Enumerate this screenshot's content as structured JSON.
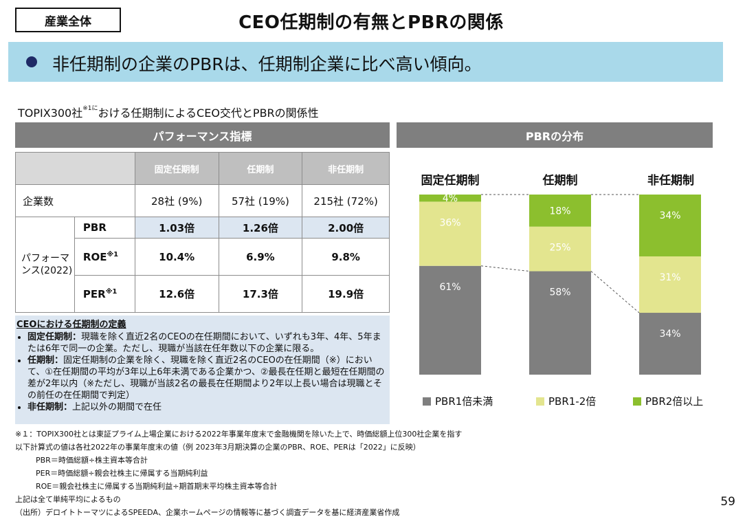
{
  "header": {
    "tag": "産業全体",
    "title": "CEO任期制の有無とPBRの関係",
    "banner": "非任期制の企業のPBRは、任期制企業に比べ高い傾向。"
  },
  "subtitle": {
    "before": "TOPIX300社",
    "sup": "※1に",
    "after": "おける任期制によるCEO交代とPBRの関係性"
  },
  "left_section": {
    "heading": "パフォーマンス指標",
    "columns": [
      "固定任期制",
      "任期制",
      "非任期制"
    ],
    "count_row": {
      "label": "企業数",
      "values": [
        "28社 (9%)",
        "57社 (19%)",
        "215社 (72%)"
      ]
    },
    "group_label": "パフォーマンス(2022)",
    "rows": [
      {
        "metric": "PBR",
        "sup": "",
        "values": [
          "1.03倍",
          "1.26倍",
          "2.00倍"
        ]
      },
      {
        "metric": "ROE",
        "sup": "※1",
        "values": [
          "10.4%",
          "6.9%",
          "9.8%"
        ]
      },
      {
        "metric": "PER",
        "sup": "※1",
        "values": [
          "12.6倍",
          "17.3倍",
          "19.9倍"
        ]
      }
    ]
  },
  "definition": {
    "title": "CEOにおける任期制の定義",
    "items": [
      {
        "term": "固定任期制：",
        "text": "現職を除く直近2名のCEOの在任期間において、いずれも3年、4年、5年または6年で同一の企業。ただし、現職が当該在任年数以下の企業に限る。"
      },
      {
        "term": "任期制：",
        "text": "固定任期制の企業を除く、現職を除く直近2名のCEOの在任期間（※）において、①在任期間の平均が3年以上6年未満である企業かつ、②最長在任期と最短在任期間の差が2年以内（※ただし、現職が当該2名の最長在任期間より2年以上長い場合は現職とその前任の在任期間で判定）"
      },
      {
        "term": "非任期制：",
        "text": "上記以外の期間で在任"
      }
    ]
  },
  "footnotes": [
    "※１：TOPIX300社とは東証プライム上場企業における2022年事業年度末で金融機関を除いた上で、時価総額上位300社企業を指す",
    "以下計算式の値は各社2022年の事業年度末の値（例 2023年3月期決算の企業のPBR、ROE、PERは「2022」に反映）",
    "PBR＝時価総額÷株主資本等合計",
    "PER＝時価総額÷親会社株主に帰属する当期純利益",
    "ROE＝親会社株主に帰属する当期純利益÷期首期末平均株主資本等合計",
    "上記は全て単純平均によるもの",
    "（出所）デロイトトーマツによるSPEEDA、企業ホームページの情報等に基づく調査データを基に経済産業省作成"
  ],
  "page_number": "59",
  "chart_heading": "PBRの分布",
  "colors": {
    "low": "#7f7f7f",
    "mid": "#e3e58f",
    "high": "#8cbf2e",
    "banner": "#a9d9ea",
    "header_bar": "#7f7f7f"
  },
  "chart_data": {
    "type": "bar",
    "stacked": true,
    "percent_stacked": true,
    "categories": [
      "固定任期制",
      "任期制",
      "非任期制"
    ],
    "series": [
      {
        "name": "PBR1倍未満",
        "values": [
          61,
          58,
          34
        ],
        "labels": [
          "61%",
          "58%",
          "34%"
        ]
      },
      {
        "name": "PBR1-2倍",
        "values": [
          36,
          25,
          31
        ],
        "labels": [
          "36%",
          "25%",
          "31%"
        ]
      },
      {
        "name": "PBR2倍以上",
        "values": [
          4,
          18,
          34
        ],
        "labels": [
          "4%",
          "18%",
          "34%"
        ]
      }
    ],
    "legend_position": "bottom",
    "ylim": [
      0,
      100
    ]
  }
}
